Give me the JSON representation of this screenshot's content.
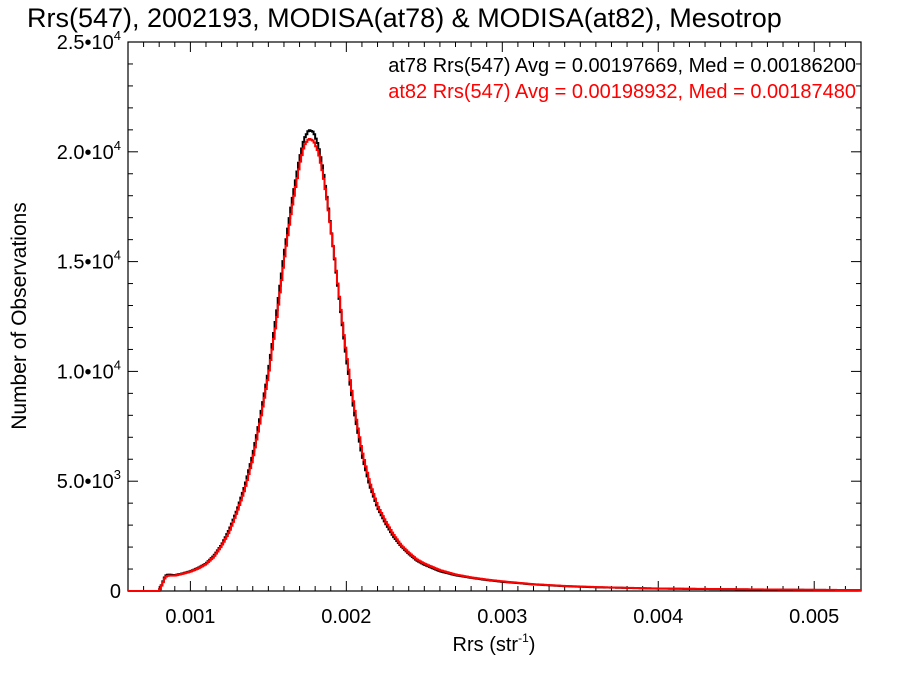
{
  "chart_data": {
    "type": "line",
    "title": "Rrs(547), 2002193, MODISA(at78) & MODISA(at82), Mesotrop",
    "xlabel": "Rrs (str",
    "xlabel_sup": "-1",
    "xlabel_suffix": ")",
    "ylabel": "Number of Observations",
    "xlim": [
      0.0006,
      0.0053
    ],
    "ylim": [
      0,
      25000
    ],
    "xticks": [
      {
        "value": 0.001,
        "label": "0.001"
      },
      {
        "value": 0.002,
        "label": "0.002"
      },
      {
        "value": 0.003,
        "label": "0.003"
      },
      {
        "value": 0.004,
        "label": "0.004"
      },
      {
        "value": 0.005,
        "label": "0.005"
      }
    ],
    "yticks": [
      {
        "value": 0,
        "label": "0",
        "sup": ""
      },
      {
        "value": 5000,
        "label": "5.0•10",
        "sup": "3"
      },
      {
        "value": 10000,
        "label": "1.0•10",
        "sup": "4"
      },
      {
        "value": 15000,
        "label": "1.5•10",
        "sup": "4"
      },
      {
        "value": 20000,
        "label": "2.0•10",
        "sup": "4"
      },
      {
        "value": 25000,
        "label": "2.5•10",
        "sup": "4"
      }
    ],
    "grid": false,
    "legend_position": "top-right",
    "series": [
      {
        "name": "at78",
        "color": "#000000",
        "legend": "at78 Rrs(547) Avg = 0.00197669, Med = 0.00186200",
        "x": [
          0.0006,
          0.0008,
          0.00084,
          0.00086,
          0.0009,
          0.00095,
          0.001,
          0.00105,
          0.0011,
          0.00115,
          0.0012,
          0.00125,
          0.0013,
          0.00135,
          0.0014,
          0.00145,
          0.0015,
          0.00155,
          0.0016,
          0.00165,
          0.0017,
          0.00173,
          0.00176,
          0.00179,
          0.00182,
          0.00185,
          0.00188,
          0.00191,
          0.00194,
          0.00197,
          0.002,
          0.00205,
          0.0021,
          0.00215,
          0.0022,
          0.00225,
          0.0023,
          0.00235,
          0.0024,
          0.00245,
          0.0025,
          0.0026,
          0.0027,
          0.0028,
          0.0029,
          0.003,
          0.0032,
          0.0034,
          0.0036,
          0.0038,
          0.004,
          0.0043,
          0.0046,
          0.0049,
          0.0053
        ],
        "y": [
          0,
          0,
          700,
          750,
          720,
          800,
          900,
          1050,
          1250,
          1600,
          2100,
          2800,
          3700,
          4800,
          6200,
          8000,
          10000,
          12500,
          15300,
          17700,
          19700,
          20600,
          21000,
          20900,
          20300,
          19200,
          17700,
          16000,
          14200,
          12400,
          10600,
          8200,
          6200,
          4800,
          3800,
          3100,
          2500,
          2050,
          1700,
          1400,
          1200,
          900,
          720,
          600,
          500,
          420,
          300,
          220,
          170,
          140,
          110,
          90,
          70,
          55,
          40
        ]
      },
      {
        "name": "at82",
        "color": "#ff0000",
        "legend": "at82 Rrs(547) Avg = 0.00198932, Med = 0.00187480",
        "x": [
          0.0006,
          0.0008,
          0.00084,
          0.00086,
          0.0009,
          0.00095,
          0.001,
          0.00105,
          0.0011,
          0.00115,
          0.0012,
          0.00125,
          0.0013,
          0.00135,
          0.0014,
          0.00145,
          0.0015,
          0.00155,
          0.0016,
          0.00165,
          0.0017,
          0.00173,
          0.00176,
          0.00179,
          0.00182,
          0.00185,
          0.00188,
          0.00191,
          0.00194,
          0.00197,
          0.002,
          0.00205,
          0.0021,
          0.00215,
          0.0022,
          0.00225,
          0.0023,
          0.00235,
          0.0024,
          0.00245,
          0.0025,
          0.0026,
          0.0027,
          0.0028,
          0.0029,
          0.003,
          0.0032,
          0.0034,
          0.0036,
          0.0038,
          0.004,
          0.0043,
          0.0046,
          0.0049,
          0.0053
        ],
        "y": [
          0,
          0,
          650,
          700,
          700,
          780,
          880,
          1020,
          1220,
          1550,
          2050,
          2700,
          3600,
          4650,
          6000,
          7800,
          9800,
          12200,
          15000,
          17400,
          19400,
          20300,
          20600,
          20500,
          20000,
          19000,
          17600,
          16000,
          14300,
          12500,
          10800,
          8400,
          6400,
          4950,
          3900,
          3200,
          2600,
          2100,
          1750,
          1450,
          1250,
          950,
          750,
          620,
          520,
          440,
          310,
          230,
          180,
          145,
          115,
          95,
          75,
          58,
          42
        ]
      }
    ]
  }
}
